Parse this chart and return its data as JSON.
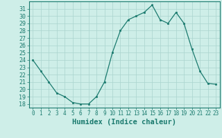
{
  "x": [
    0,
    1,
    2,
    3,
    4,
    5,
    6,
    7,
    8,
    9,
    10,
    11,
    12,
    13,
    14,
    15,
    16,
    17,
    18,
    19,
    20,
    21,
    22,
    23
  ],
  "y": [
    24,
    22.5,
    21,
    19.5,
    19,
    18.2,
    18,
    18,
    19,
    21,
    25,
    28,
    29.5,
    30,
    30.5,
    31.5,
    29.5,
    29,
    30.5,
    29,
    25.5,
    22.5,
    20.8,
    20.7
  ],
  "line_color": "#1a7a6e",
  "marker": "s",
  "marker_size": 2,
  "bg_color": "#ceeee8",
  "grid_color": "#aad4ce",
  "xlabel": "Humidex (Indice chaleur)",
  "xlim": [
    -0.5,
    23.5
  ],
  "ylim": [
    17.5,
    32
  ],
  "yticks": [
    18,
    19,
    20,
    21,
    22,
    23,
    24,
    25,
    26,
    27,
    28,
    29,
    30,
    31
  ],
  "xtick_labels": [
    "0",
    "1",
    "2",
    "3",
    "4",
    "5",
    "6",
    "7",
    "8",
    "9",
    "10",
    "11",
    "12",
    "13",
    "14",
    "15",
    "16",
    "17",
    "18",
    "19",
    "20",
    "21",
    "22",
    "23"
  ],
  "tick_color": "#1a7a6e",
  "spine_color": "#1a7a6e",
  "xlabel_fontsize": 7.5,
  "ytick_fontsize": 6,
  "xtick_fontsize": 5.5
}
